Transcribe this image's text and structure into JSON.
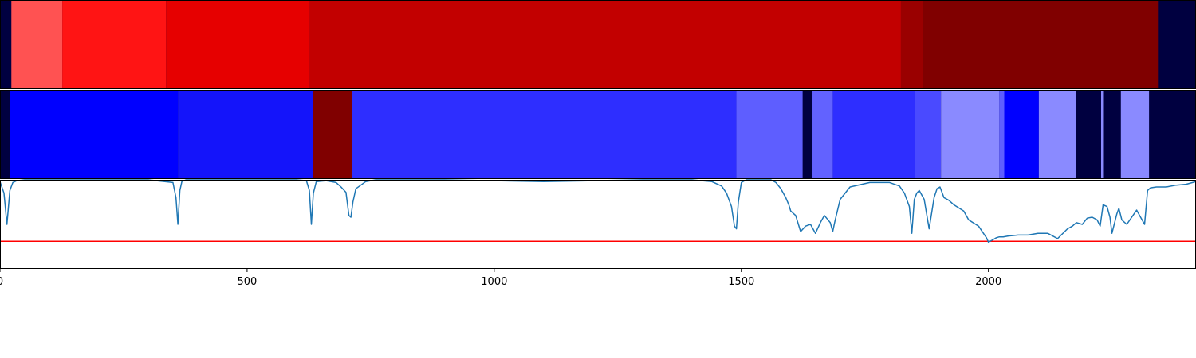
{
  "chart_data": [
    {
      "type": "heatmap",
      "panel": "red-segments",
      "xlim": [
        0,
        2420
      ],
      "background_color": "#000040",
      "segments": [
        {
          "start": 23,
          "end": 126,
          "color": "#ff5252"
        },
        {
          "start": 126,
          "end": 336,
          "color": "#ff1414"
        },
        {
          "start": 336,
          "end": 627,
          "color": "#e60000"
        },
        {
          "start": 627,
          "end": 1823,
          "color": "#c20000"
        },
        {
          "start": 1823,
          "end": 1868,
          "color": "#9a0000"
        },
        {
          "start": 1868,
          "end": 2343,
          "color": "#800000"
        }
      ]
    },
    {
      "type": "heatmap",
      "panel": "blue-segments",
      "xlim": [
        0,
        2420
      ],
      "background_color": "#000040",
      "segments": [
        {
          "start": 20,
          "end": 360,
          "color": "#0000ff"
        },
        {
          "start": 360,
          "end": 633,
          "color": "#1414fa"
        },
        {
          "start": 633,
          "end": 713,
          "color": "#800000"
        },
        {
          "start": 713,
          "end": 1490,
          "color": "#2e2eff"
        },
        {
          "start": 1490,
          "end": 1624,
          "color": "#5e5eff"
        },
        {
          "start": 1644,
          "end": 1685,
          "color": "#6262ff"
        },
        {
          "start": 1685,
          "end": 1852,
          "color": "#2e2eff"
        },
        {
          "start": 1852,
          "end": 1904,
          "color": "#4a4aff"
        },
        {
          "start": 1904,
          "end": 2022,
          "color": "#8a8aff"
        },
        {
          "start": 2022,
          "end": 2032,
          "color": "#5e5eff"
        },
        {
          "start": 2032,
          "end": 2102,
          "color": "#0000ff"
        },
        {
          "start": 2102,
          "end": 2178,
          "color": "#8a8aff"
        },
        {
          "start": 2228,
          "end": 2232,
          "color": "#8a8aff"
        },
        {
          "start": 2268,
          "end": 2325,
          "color": "#8a8aff"
        }
      ]
    },
    {
      "type": "line",
      "panel": "signal",
      "xlim": [
        0,
        2420
      ],
      "ylim": [
        0,
        1
      ],
      "grid": false,
      "xticks": [
        0,
        500,
        1000,
        1500,
        2000
      ],
      "xtick_labels": [
        "0",
        "500",
        "1000",
        "1500",
        "2000"
      ],
      "line_color": "#1f77b4",
      "threshold": {
        "value": 0.31,
        "color": "#ff0000"
      },
      "series": [
        {
          "x": [
            0,
            8,
            14,
            20,
            26,
            34,
            50,
            300,
            350,
            356,
            360,
            364,
            368,
            376,
            390,
            500,
            600,
            620,
            626,
            630,
            634,
            640,
            660,
            680,
            690,
            700,
            706,
            710,
            714,
            720,
            740,
            760,
            800,
            900,
            1000,
            1100,
            1200,
            1300,
            1400,
            1440,
            1460,
            1470,
            1480,
            1486,
            1490,
            1494,
            1500,
            1510,
            1560,
            1570,
            1580,
            1590,
            1596,
            1600,
            1610,
            1620,
            1630,
            1640,
            1650,
            1660,
            1668,
            1680,
            1685,
            1690,
            1700,
            1720,
            1760,
            1800,
            1820,
            1830,
            1840,
            1845,
            1850,
            1855,
            1860,
            1870,
            1880,
            1890,
            1896,
            1902,
            1910,
            1920,
            1930,
            1950,
            1960,
            1980,
            1996,
            2000,
            2010,
            2016,
            2022,
            2030,
            2040,
            2060,
            2080,
            2100,
            2120,
            2140,
            2160,
            2170,
            2178,
            2190,
            2200,
            2210,
            2220,
            2226,
            2232,
            2240,
            2246,
            2250,
            2260,
            2264,
            2270,
            2280,
            2300,
            2316,
            2322,
            2328,
            2340,
            2360,
            2380,
            2400,
            2420
          ],
          "y": [
            0.98,
            0.85,
            0.5,
            0.88,
            0.97,
            0.99,
            1.0,
            1.0,
            0.97,
            0.8,
            0.5,
            0.88,
            0.98,
            1.0,
            1.0,
            1.0,
            1.0,
            0.99,
            0.88,
            0.5,
            0.85,
            0.98,
            0.99,
            0.97,
            0.92,
            0.86,
            0.6,
            0.58,
            0.75,
            0.9,
            0.98,
            1.0,
            1.0,
            1.0,
            0.99,
            0.98,
            0.99,
            1.0,
            1.0,
            0.98,
            0.93,
            0.85,
            0.7,
            0.48,
            0.45,
            0.75,
            0.97,
            1.0,
            1.0,
            0.97,
            0.9,
            0.8,
            0.72,
            0.65,
            0.6,
            0.42,
            0.48,
            0.5,
            0.4,
            0.52,
            0.6,
            0.52,
            0.42,
            0.55,
            0.78,
            0.92,
            0.97,
            0.97,
            0.93,
            0.85,
            0.7,
            0.4,
            0.78,
            0.85,
            0.88,
            0.78,
            0.45,
            0.8,
            0.9,
            0.92,
            0.8,
            0.77,
            0.72,
            0.65,
            0.55,
            0.48,
            0.35,
            0.3,
            0.33,
            0.35,
            0.36,
            0.36,
            0.37,
            0.38,
            0.38,
            0.4,
            0.4,
            0.34,
            0.45,
            0.48,
            0.52,
            0.5,
            0.57,
            0.58,
            0.55,
            0.48,
            0.72,
            0.7,
            0.58,
            0.4,
            0.62,
            0.68,
            0.55,
            0.5,
            0.66,
            0.5,
            0.88,
            0.91,
            0.92,
            0.92,
            0.94,
            0.95,
            0.98
          ]
        }
      ]
    }
  ]
}
